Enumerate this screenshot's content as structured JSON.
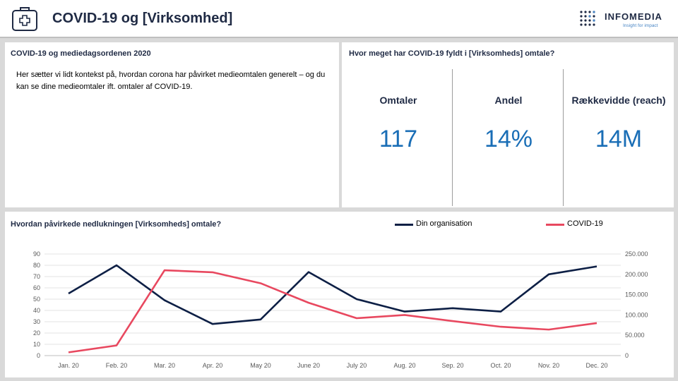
{
  "header": {
    "title": "COVID-19 og [Virksomhed]",
    "app_icon": "medical-kit-icon",
    "logo": {
      "name": "INFOMEDIA",
      "tagline": "Insight for impact"
    }
  },
  "context_panel": {
    "heading": "COVID-19 og mediedagsordenen 2020",
    "body": "Her sætter vi lidt kontekst på, hvordan corona har påvirket medieomtalen generelt – og du kan se dine medieomtaler ift. omtaler af COVID-19."
  },
  "kpi_panel": {
    "heading": "Hvor meget har COVID-19 fyldt i [Virksomheds] omtale?",
    "kpis": [
      {
        "label": "Omtaler",
        "value": "117"
      },
      {
        "label": "Andel",
        "value": "14%"
      },
      {
        "label": "Rækkevidde (reach)",
        "value": "14M"
      }
    ]
  },
  "chart_panel": {
    "heading": "Hvordan påvirkede nedlukningen [Virksomheds] omtale?"
  },
  "colors": {
    "series_org": "#0d1f45",
    "series_covid": "#e8485f",
    "kpi_value": "#1a6eb6",
    "title": "#1f2a44"
  },
  "chart_data": {
    "type": "line",
    "title": "",
    "xlabel": "",
    "categories": [
      "Jan. 20",
      "Feb. 20",
      "Mar. 20",
      "Apr. 20",
      "May 20",
      "June 20",
      "July 20",
      "Aug. 20",
      "Sep. 20",
      "Oct. 20",
      "Nov. 20",
      "Dec. 20"
    ],
    "series": [
      {
        "name": "Din organisation",
        "axis": "left",
        "color": "#0d1f45",
        "values": [
          55,
          80,
          49,
          28,
          32,
          74,
          50,
          39,
          42,
          39,
          72,
          79
        ]
      },
      {
        "name": "COVID-19",
        "axis": "right",
        "color": "#e8485f",
        "values": [
          8000,
          25000,
          210000,
          205000,
          178000,
          130000,
          92000,
          100000,
          85000,
          71000,
          64000,
          80000
        ]
      }
    ],
    "y_left": {
      "lim": [
        0,
        90
      ],
      "ticks": [
        "0",
        "10",
        "20",
        "30",
        "40",
        "50",
        "60",
        "70",
        "80",
        "90"
      ]
    },
    "y_right": {
      "lim": [
        0,
        250000
      ],
      "ticks": [
        "0",
        "50.000",
        "100.000",
        "150.000",
        "200.000",
        "250.000"
      ]
    },
    "grid": true,
    "legend_position": "top"
  }
}
